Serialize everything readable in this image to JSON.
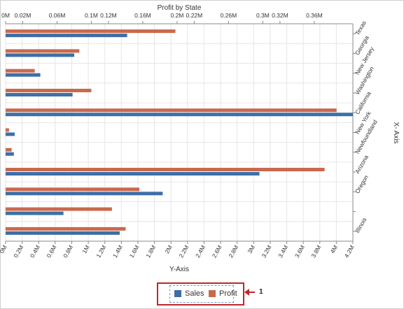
{
  "chart_data": {
    "type": "bar",
    "orientation": "horizontal",
    "title": "Profit by State",
    "xlabel": "Y-Axis",
    "ylabel": "X- Axis",
    "categories": [
      "Texas",
      "Georgia",
      "New Jersey",
      "Washington",
      "California",
      "New York",
      "Newfoundland",
      "Arizona",
      "Oregon",
      "",
      "Illinois"
    ],
    "series": [
      {
        "name": "Sales",
        "color": "#3d6fa6",
        "axis": "bottom",
        "values": [
          1.47,
          0.83,
          0.42,
          0.81,
          4.2,
          0.11,
          0.1,
          3.07,
          1.9,
          0.7,
          1.38
        ]
      },
      {
        "name": "Profit",
        "color": "#c8694d",
        "axis": "top",
        "values": [
          0.198,
          0.086,
          0.034,
          0.1,
          0.386,
          0.004,
          0.007,
          0.372,
          0.156,
          0.124,
          0.14
        ]
      }
    ],
    "bottom_axis": {
      "range": [
        0,
        4.2
      ],
      "ticks": [
        "0M",
        "0.2M",
        "0.4M",
        "0.6M",
        "0.8M",
        "1M",
        "1.2M",
        "1.4M",
        "1.6M",
        "1.8M",
        "2M",
        "2.2M",
        "2.4M",
        "2.6M",
        "2.8M",
        "3M",
        "3.2M",
        "3.4M",
        "3.6M",
        "3.8M",
        "4M",
        "4.2M"
      ],
      "tick_values": [
        0,
        0.2,
        0.4,
        0.6,
        0.8,
        1,
        1.2,
        1.4,
        1.6,
        1.8,
        2,
        2.2,
        2.4,
        2.6,
        2.8,
        3,
        3.2,
        3.4,
        3.6,
        3.8,
        4,
        4.2
      ]
    },
    "top_axis": {
      "ticks": [
        "0M",
        "0.02M",
        "0.06M",
        "0.1M",
        "0.12M",
        "0.16M",
        "0.2M",
        "0.22M",
        "0.26M",
        "0.3M",
        "0.32M",
        "0.36M"
      ],
      "tick_values": [
        0,
        0.02,
        0.06,
        0.1,
        0.12,
        0.16,
        0.2,
        0.22,
        0.26,
        0.3,
        0.32,
        0.36
      ],
      "range": [
        0,
        0.405
      ]
    },
    "grid": true,
    "legend": "bottom-center"
  },
  "callout": {
    "label": "1"
  }
}
